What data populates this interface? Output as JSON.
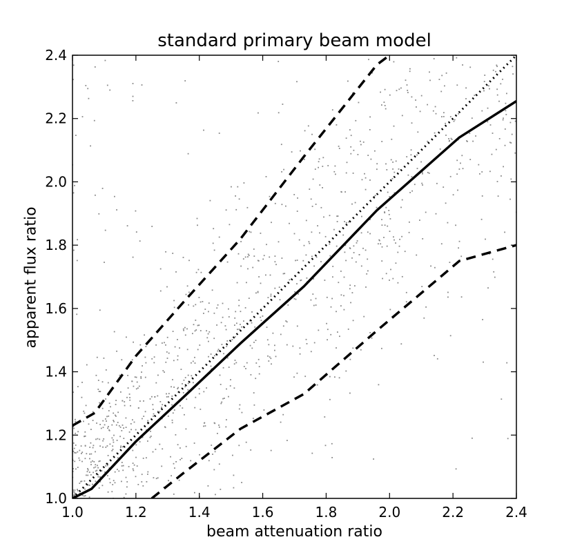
{
  "chart_data": {
    "type": "scatter",
    "title": "standard primary beam model",
    "xlabel": "beam attenuation ratio",
    "ylabel": "apparent flux ratio",
    "xlim": [
      1.0,
      2.4
    ],
    "ylim": [
      1.0,
      2.4
    ],
    "xticks": [
      "1.0",
      "1.2",
      "1.4",
      "1.6",
      "1.8",
      "2.0",
      "2.2",
      "2.4"
    ],
    "yticks": [
      "1.0",
      "1.2",
      "1.4",
      "1.6",
      "1.8",
      "2.0",
      "2.2",
      "2.4"
    ],
    "grid": false,
    "legend": "none",
    "scatter_color": "#888888",
    "line_color": "#000000",
    "series": [
      {
        "style": "solid",
        "x": [
          1.0,
          1.06,
          1.2,
          1.35,
          1.53,
          1.73,
          1.96,
          2.22,
          2.4
        ],
        "y": [
          1.0,
          1.03,
          1.18,
          1.32,
          1.49,
          1.67,
          1.91,
          2.14,
          2.255
        ]
      },
      {
        "style": "dashed",
        "x": [
          1.0,
          1.07,
          1.2,
          1.35,
          1.53,
          1.73,
          1.96,
          2.0
        ],
        "y": [
          1.23,
          1.27,
          1.45,
          1.62,
          1.82,
          2.08,
          2.37,
          2.4
        ]
      },
      {
        "style": "dashed",
        "x": [
          1.25,
          1.35,
          1.53,
          1.73,
          1.96,
          2.22,
          2.4
        ],
        "y": [
          1.0,
          1.08,
          1.22,
          1.33,
          1.53,
          1.75,
          1.8
        ]
      },
      {
        "style": "dotted",
        "x": [
          1.0,
          2.4
        ],
        "y": [
          1.0,
          2.4
        ]
      }
    ],
    "scatter": {
      "n_points": 1400,
      "description_values": "dense near the diagonal at low x, sparser at high x"
    }
  }
}
